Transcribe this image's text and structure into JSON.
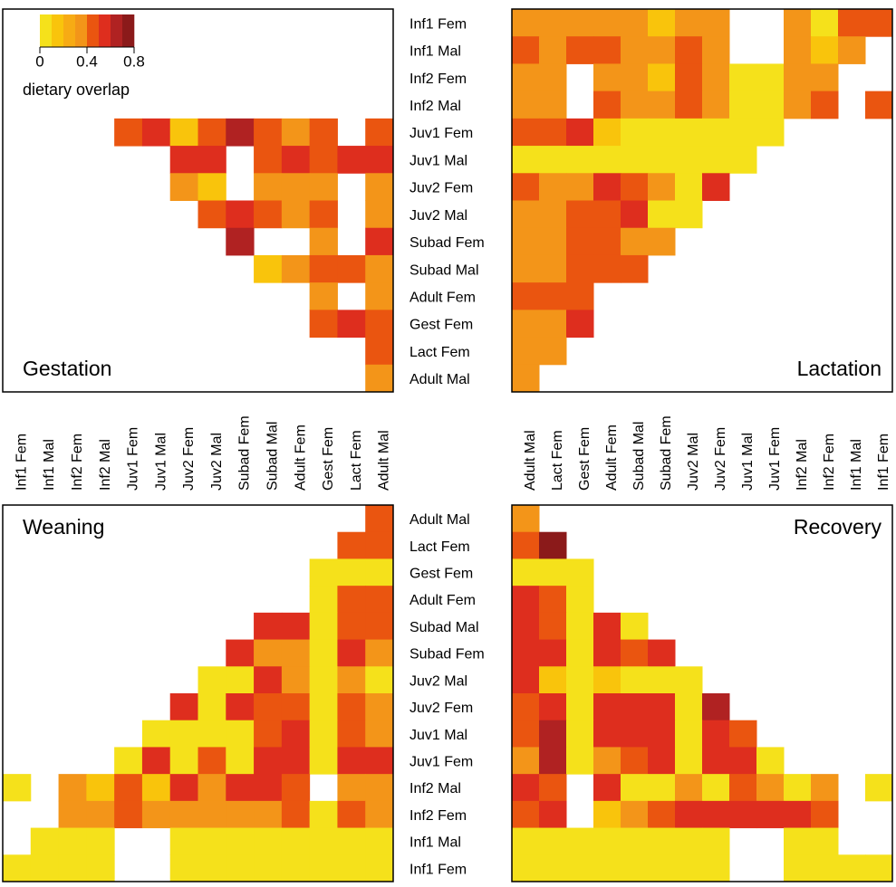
{
  "chart_data": {
    "type": "heatmap",
    "colorbar": {
      "breaks": [
        0,
        0.1,
        0.2,
        0.3,
        0.4,
        0.5,
        0.6,
        0.7,
        0.8
      ],
      "colors": [
        "#f5e11b",
        "#f9c40c",
        "#f7ab14",
        "#f39519",
        "#ea5510",
        "#de2e1e",
        "#b02222",
        "#8b1a1a"
      ],
      "ticks": [
        0,
        0.4,
        0.8
      ],
      "label": "dietary overlap"
    },
    "row_labels": {
      "top": [
        "Inf1 Fem",
        "Inf1 Mal",
        "Inf2 Fem",
        "Inf2 Mal",
        "Juv1 Fem",
        "Juv1 Mal",
        "Juv2 Fem",
        "Juv2 Mal",
        "Subad Fem",
        "Subad Mal",
        "Adult Fem",
        "Gest Fem",
        "Lact Fem",
        "Adult Mal"
      ],
      "bottom": [
        "Adult Mal",
        "Lact Fem",
        "Gest Fem",
        "Adult Fem",
        "Subad Mal",
        "Subad Fem",
        "Juv2 Mal",
        "Juv2 Fem",
        "Juv1 Mal",
        "Juv1 Fem",
        "Inf2 Mal",
        "Inf2 Fem",
        "Inf1 Mal",
        "Inf1 Fem"
      ]
    },
    "column_labels": {
      "left": [
        "Inf1 Fem",
        "Inf1 Mal",
        "Inf2 Fem",
        "Inf2 Mal",
        "Juv1 Fem",
        "Juv1 Mal",
        "Juv2 Fem",
        "Juv2 Mal",
        "Subad Fem",
        "Subad Mal",
        "Adult Fem",
        "Gest Fem",
        "Lact Fem",
        "Adult Mal"
      ],
      "right": [
        "Adult Mal",
        "Lact Fem",
        "Gest Fem",
        "Adult Fem",
        "Subad Mal",
        "Subad Fem",
        "Juv2 Mal",
        "Juv2 Fem",
        "Juv1 Mal",
        "Juv1 Fem",
        "Inf2 Mal",
        "Inf2 Fem",
        "Inf1 Mal",
        "Inf1 Fem"
      ]
    },
    "panels": [
      {
        "title": "Gestation",
        "rows": "top",
        "columns": "left",
        "title_corner": "bottom-left",
        "values": [
          [
            null,
            null,
            null,
            null,
            null,
            null,
            null,
            null,
            null,
            null,
            null,
            null,
            null,
            null
          ],
          [
            null,
            null,
            null,
            null,
            null,
            null,
            null,
            null,
            null,
            null,
            null,
            null,
            null,
            null
          ],
          [
            null,
            null,
            null,
            null,
            null,
            null,
            null,
            null,
            null,
            null,
            null,
            null,
            null,
            null
          ],
          [
            null,
            null,
            null,
            null,
            null,
            null,
            null,
            null,
            null,
            null,
            null,
            null,
            null,
            null
          ],
          [
            null,
            null,
            null,
            null,
            0.45,
            0.55,
            0.15,
            0.45,
            0.65,
            0.45,
            0.3,
            0.45,
            null,
            0.45
          ],
          [
            null,
            null,
            null,
            null,
            null,
            null,
            0.55,
            0.55,
            null,
            0.45,
            0.55,
            0.45,
            0.55,
            0.55
          ],
          [
            null,
            null,
            null,
            null,
            null,
            null,
            0.3,
            0.15,
            null,
            0.3,
            0.3,
            0.3,
            null,
            0.3
          ],
          [
            null,
            null,
            null,
            null,
            null,
            null,
            null,
            0.45,
            0.55,
            0.45,
            0.3,
            0.45,
            null,
            0.3
          ],
          [
            null,
            null,
            null,
            null,
            null,
            null,
            null,
            null,
            0.65,
            null,
            null,
            0.3,
            null,
            0.55
          ],
          [
            null,
            null,
            null,
            null,
            null,
            null,
            null,
            null,
            null,
            0.15,
            0.3,
            0.45,
            0.45,
            0.3
          ],
          [
            null,
            null,
            null,
            null,
            null,
            null,
            null,
            null,
            null,
            null,
            null,
            0.3,
            null,
            0.3
          ],
          [
            null,
            null,
            null,
            null,
            null,
            null,
            null,
            null,
            null,
            null,
            null,
            0.45,
            0.55,
            0.45
          ],
          [
            null,
            null,
            null,
            null,
            null,
            null,
            null,
            null,
            null,
            null,
            null,
            null,
            null,
            0.45
          ],
          [
            null,
            null,
            null,
            null,
            null,
            null,
            null,
            null,
            null,
            null,
            null,
            null,
            null,
            0.3
          ]
        ]
      },
      {
        "title": "Lactation",
        "rows": "top",
        "columns": "right",
        "title_corner": "bottom-right",
        "values": [
          [
            0.3,
            0.3,
            0.3,
            0.3,
            0.3,
            0.15,
            0.3,
            0.3,
            null,
            null,
            0.3,
            0.05,
            0.45,
            0.45
          ],
          [
            0.45,
            0.3,
            0.45,
            0.45,
            0.3,
            0.3,
            0.45,
            0.3,
            null,
            null,
            0.3,
            0.15,
            0.3,
            null
          ],
          [
            0.3,
            0.3,
            null,
            0.3,
            0.3,
            0.15,
            0.45,
            0.3,
            0.05,
            0.05,
            0.3,
            0.3,
            null,
            null
          ],
          [
            0.3,
            0.3,
            null,
            0.45,
            0.3,
            0.3,
            0.45,
            0.3,
            0.05,
            0.05,
            0.3,
            0.45,
            null,
            0.45
          ],
          [
            0.45,
            0.45,
            0.55,
            0.15,
            0.05,
            0.05,
            0.05,
            0.05,
            0.05,
            0.05,
            null,
            null,
            null,
            null
          ],
          [
            0.05,
            0.05,
            0.05,
            0.05,
            0.05,
            0.05,
            0.05,
            0.05,
            0.05,
            null,
            null,
            null,
            null,
            null
          ],
          [
            0.45,
            0.3,
            0.3,
            0.55,
            0.45,
            0.3,
            0.05,
            0.55,
            null,
            null,
            null,
            null,
            null,
            null
          ],
          [
            0.3,
            0.3,
            0.45,
            0.45,
            0.55,
            0.05,
            0.05,
            null,
            null,
            null,
            null,
            null,
            null,
            null
          ],
          [
            0.3,
            0.3,
            0.45,
            0.45,
            0.3,
            0.3,
            null,
            null,
            null,
            null,
            null,
            null,
            null,
            null
          ],
          [
            0.3,
            0.3,
            0.45,
            0.45,
            0.45,
            null,
            null,
            null,
            null,
            null,
            null,
            null,
            null,
            null
          ],
          [
            0.45,
            0.45,
            0.45,
            null,
            null,
            null,
            null,
            null,
            null,
            null,
            null,
            null,
            null,
            null
          ],
          [
            0.3,
            0.3,
            0.55,
            null,
            null,
            null,
            null,
            null,
            null,
            null,
            null,
            null,
            null,
            null
          ],
          [
            0.3,
            0.3,
            null,
            null,
            null,
            null,
            null,
            null,
            null,
            null,
            null,
            null,
            null,
            null
          ],
          [
            0.3,
            null,
            null,
            null,
            null,
            null,
            null,
            null,
            null,
            null,
            null,
            null,
            null,
            null
          ]
        ]
      },
      {
        "title": "Weaning",
        "rows": "bottom",
        "columns": "left",
        "title_corner": "top-left",
        "values": [
          [
            null,
            null,
            null,
            null,
            null,
            null,
            null,
            null,
            null,
            null,
            null,
            null,
            null,
            0.45
          ],
          [
            null,
            null,
            null,
            null,
            null,
            null,
            null,
            null,
            null,
            null,
            null,
            null,
            0.45,
            0.45
          ],
          [
            null,
            null,
            null,
            null,
            null,
            null,
            null,
            null,
            null,
            null,
            null,
            0.05,
            0.05,
            0.05
          ],
          [
            null,
            null,
            null,
            null,
            null,
            null,
            null,
            null,
            null,
            null,
            null,
            0.05,
            0.45,
            0.45
          ],
          [
            null,
            null,
            null,
            null,
            null,
            null,
            null,
            null,
            null,
            0.55,
            0.55,
            0.05,
            0.45,
            0.45
          ],
          [
            null,
            null,
            null,
            null,
            null,
            null,
            null,
            null,
            0.55,
            0.3,
            0.3,
            0.05,
            0.55,
            0.3
          ],
          [
            null,
            null,
            null,
            null,
            null,
            null,
            null,
            0.05,
            0.05,
            0.55,
            0.3,
            0.05,
            0.3,
            0.05
          ],
          [
            null,
            null,
            null,
            null,
            null,
            null,
            0.55,
            0.05,
            0.55,
            0.45,
            0.45,
            0.05,
            0.45,
            0.3
          ],
          [
            null,
            null,
            null,
            null,
            null,
            0.05,
            0.05,
            0.05,
            0.05,
            0.45,
            0.55,
            0.05,
            0.45,
            0.3
          ],
          [
            null,
            null,
            null,
            null,
            0.05,
            0.55,
            0.05,
            0.45,
            0.05,
            0.55,
            0.55,
            0.05,
            0.55,
            0.55
          ],
          [
            0.05,
            null,
            0.3,
            0.15,
            0.45,
            0.15,
            0.55,
            0.3,
            0.55,
            0.55,
            0.45,
            null,
            0.3,
            0.3
          ],
          [
            null,
            null,
            0.3,
            0.3,
            0.45,
            0.3,
            0.3,
            0.3,
            0.3,
            0.3,
            0.45,
            0.05,
            0.45,
            0.3
          ],
          [
            null,
            0.05,
            0.05,
            0.05,
            null,
            null,
            0.05,
            0.05,
            0.05,
            0.05,
            0.05,
            0.05,
            0.05,
            0.05
          ],
          [
            0.05,
            0.05,
            0.05,
            0.05,
            null,
            null,
            0.05,
            0.05,
            0.05,
            0.05,
            0.05,
            0.05,
            0.05,
            0.05
          ]
        ]
      },
      {
        "title": "Recovery",
        "rows": "bottom",
        "columns": "right",
        "title_corner": "top-right",
        "values": [
          [
            0.3,
            null,
            null,
            null,
            null,
            null,
            null,
            null,
            null,
            null,
            null,
            null,
            null,
            null
          ],
          [
            0.45,
            0.75,
            null,
            null,
            null,
            null,
            null,
            null,
            null,
            null,
            null,
            null,
            null,
            null
          ],
          [
            0.05,
            0.05,
            0.05,
            null,
            null,
            null,
            null,
            null,
            null,
            null,
            null,
            null,
            null,
            null
          ],
          [
            0.55,
            0.45,
            0.05,
            null,
            null,
            null,
            null,
            null,
            null,
            null,
            null,
            null,
            null,
            null
          ],
          [
            0.55,
            0.45,
            0.05,
            0.55,
            0.05,
            null,
            null,
            null,
            null,
            null,
            null,
            null,
            null,
            null
          ],
          [
            0.55,
            0.55,
            0.05,
            0.55,
            0.45,
            0.55,
            null,
            null,
            null,
            null,
            null,
            null,
            null,
            null
          ],
          [
            0.55,
            0.15,
            0.05,
            0.15,
            0.05,
            0.05,
            0.05,
            null,
            null,
            null,
            null,
            null,
            null,
            null
          ],
          [
            0.45,
            0.55,
            0.05,
            0.55,
            0.55,
            0.55,
            0.05,
            0.65,
            null,
            null,
            null,
            null,
            null,
            null
          ],
          [
            0.45,
            0.65,
            0.05,
            0.55,
            0.55,
            0.55,
            0.05,
            0.55,
            0.45,
            null,
            null,
            null,
            null,
            null
          ],
          [
            0.3,
            0.65,
            0.05,
            0.3,
            0.45,
            0.55,
            0.05,
            0.55,
            0.55,
            0.05,
            null,
            null,
            null,
            null
          ],
          [
            0.55,
            0.45,
            null,
            0.55,
            0.05,
            0.05,
            0.3,
            0.05,
            0.45,
            0.3,
            0.05,
            0.3,
            null,
            0.05
          ],
          [
            0.45,
            0.55,
            null,
            0.15,
            0.3,
            0.45,
            0.55,
            0.55,
            0.55,
            0.55,
            0.55,
            0.45,
            null,
            null
          ],
          [
            0.05,
            0.05,
            0.05,
            0.05,
            0.05,
            0.05,
            0.05,
            0.05,
            null,
            null,
            0.05,
            0.05,
            null,
            null
          ],
          [
            0.05,
            0.05,
            0.05,
            0.05,
            0.05,
            0.05,
            0.05,
            0.05,
            null,
            null,
            0.05,
            0.05,
            0.05,
            0.05
          ]
        ]
      }
    ]
  }
}
